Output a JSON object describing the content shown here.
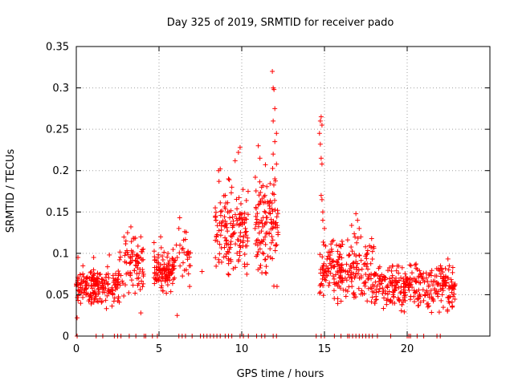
{
  "chart_data": {
    "type": "scatter",
    "title": "Day 325 of 2019, SRMTID for receiver pado",
    "xlabel": "GPS time / hours",
    "ylabel": "SRMTID / TECUs",
    "xlim": [
      0,
      25
    ],
    "ylim": [
      0,
      0.35
    ],
    "x_ticks": [
      0,
      5,
      10,
      15,
      20
    ],
    "x_tick_labels": [
      "0",
      "5",
      "10",
      "15",
      "20"
    ],
    "y_ticks": [
      0,
      0.05,
      0.1,
      0.15,
      0.2,
      0.25,
      0.3,
      0.35
    ],
    "y_tick_labels": [
      "0",
      "0.05",
      "0.1",
      "0.15",
      "0.2",
      "0.25",
      "0.3",
      "0.35"
    ],
    "grid": true,
    "marker": "plus",
    "color": "#ff0000",
    "series": [
      {
        "name": "SRMTID",
        "clusters": [
          {
            "x": [
              0.0,
              1.5
            ],
            "y": [
              0.03,
              0.09
            ],
            "n": 120
          },
          {
            "x": [
              1.5,
              2.6
            ],
            "y": [
              0.03,
              0.09
            ],
            "n": 70
          },
          {
            "x": [
              2.6,
              4.1
            ],
            "y": [
              0.04,
              0.13
            ],
            "n": 80
          },
          {
            "x": [
              4.7,
              6.0
            ],
            "y": [
              0.04,
              0.12
            ],
            "n": 110
          },
          {
            "x": [
              6.2,
              6.9
            ],
            "y": [
              0.05,
              0.14
            ],
            "n": 25
          },
          {
            "x": [
              8.4,
              10.4
            ],
            "y": [
              0.05,
              0.2
            ],
            "n": 150
          },
          {
            "x": [
              10.8,
              12.2
            ],
            "y": [
              0.05,
              0.22
            ],
            "n": 120
          },
          {
            "x": [
              14.7,
              16.0
            ],
            "y": [
              0.03,
              0.13
            ],
            "n": 90
          },
          {
            "x": [
              15.8,
              18.0
            ],
            "y": [
              0.02,
              0.14
            ],
            "n": 140
          },
          {
            "x": [
              18.0,
              20.5
            ],
            "y": [
              0.02,
              0.1
            ],
            "n": 160
          },
          {
            "x": [
              20.5,
              22.9
            ],
            "y": [
              0.02,
              0.1
            ],
            "n": 150
          }
        ],
        "points": [
          [
            0.05,
            0.022
          ],
          [
            0.1,
            0.095
          ],
          [
            0.4,
            0.085
          ],
          [
            1.05,
            0.095
          ],
          [
            2.0,
            0.098
          ],
          [
            2.6,
            0.075
          ],
          [
            3.0,
            0.115
          ],
          [
            3.1,
            0.125
          ],
          [
            3.3,
            0.132
          ],
          [
            3.5,
            0.118
          ],
          [
            3.9,
            0.12
          ],
          [
            3.9,
            0.028
          ],
          [
            4.7,
            0.113
          ],
          [
            5.1,
            0.12
          ],
          [
            6.05,
            0.11
          ],
          [
            6.1,
            0.095
          ],
          [
            6.1,
            0.025
          ],
          [
            6.2,
            0.13
          ],
          [
            6.25,
            0.143
          ],
          [
            6.8,
            0.1
          ],
          [
            6.85,
            0.06
          ],
          [
            7.6,
            0.078
          ],
          [
            8.4,
            0.155
          ],
          [
            8.6,
            0.2
          ],
          [
            8.7,
            0.202
          ],
          [
            9.0,
            0.17
          ],
          [
            9.2,
            0.19
          ],
          [
            9.4,
            0.18
          ],
          [
            9.6,
            0.212
          ],
          [
            9.8,
            0.222
          ],
          [
            9.9,
            0.228
          ],
          [
            9.95,
            0.16
          ],
          [
            10.1,
            0.12
          ],
          [
            9.75,
            0.14
          ],
          [
            11.0,
            0.23
          ],
          [
            11.1,
            0.215
          ],
          [
            11.2,
            0.18
          ],
          [
            11.4,
            0.17
          ],
          [
            11.6,
            0.16
          ],
          [
            11.85,
            0.32
          ],
          [
            11.9,
            0.3
          ],
          [
            11.95,
            0.298
          ],
          [
            12.0,
            0.275
          ],
          [
            11.9,
            0.26
          ],
          [
            12.1,
            0.245
          ],
          [
            12.0,
            0.235
          ],
          [
            11.9,
            0.22
          ],
          [
            12.1,
            0.208
          ],
          [
            12.0,
            0.19
          ],
          [
            14.75,
            0.26
          ],
          [
            14.8,
            0.265
          ],
          [
            14.85,
            0.255
          ],
          [
            14.7,
            0.245
          ],
          [
            14.75,
            0.232
          ],
          [
            14.8,
            0.215
          ],
          [
            14.85,
            0.208
          ],
          [
            14.8,
            0.17
          ],
          [
            14.85,
            0.165
          ],
          [
            14.9,
            0.15
          ],
          [
            14.9,
            0.14
          ],
          [
            15.0,
            0.13
          ],
          [
            16.9,
            0.148
          ],
          [
            17.0,
            0.14
          ],
          [
            17.1,
            0.13
          ],
          [
            17.2,
            0.12
          ]
        ],
        "zero_points": [
          0.05,
          1.2,
          1.6,
          2.3,
          2.5,
          2.7,
          3.2,
          3.6,
          4.1,
          4.2,
          4.6,
          4.9,
          6.2,
          6.4,
          6.6,
          7.0,
          7.5,
          7.7,
          7.9,
          8.1,
          8.3,
          8.5,
          8.7,
          9.0,
          9.2,
          9.4,
          9.9,
          10.1,
          10.4,
          10.9,
          11.2,
          11.4,
          11.9,
          12.1,
          14.5,
          14.8,
          15.0,
          15.6,
          16.0,
          16.4,
          16.5,
          16.7,
          16.9,
          17.1,
          17.3,
          17.5,
          17.7,
          17.9,
          18.2,
          19.0,
          20.0,
          20.1,
          20.2,
          20.6,
          21.0,
          21.8,
          22.0
        ]
      }
    ]
  }
}
